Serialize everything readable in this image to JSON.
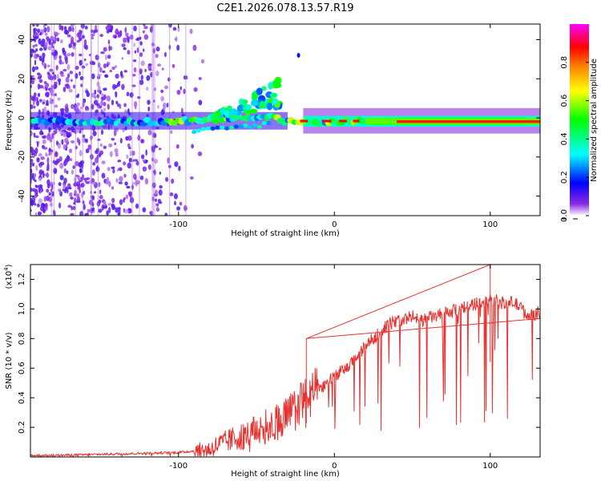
{
  "chart_data": [
    {
      "type": "heatmap",
      "title": "C2E1.2026.078.13.57.R19",
      "xlabel": "Height of straight line (km)",
      "ylabel": "Frequency (Hz)",
      "xlim": [
        -195,
        132
      ],
      "ylim": [
        -50,
        48
      ],
      "x_ticks": [
        -100,
        0,
        100
      ],
      "x_tick_labels": [
        "-100",
        "0",
        "100"
      ],
      "y_ticks": [
        -40,
        -20,
        0,
        20,
        40
      ],
      "y_tick_labels": [
        "-40",
        "-20",
        "0",
        "20",
        "40"
      ],
      "colorbar": {
        "label": "Normalized spectral amplitude",
        "range": [
          0,
          1
        ],
        "ticks": [
          0.0,
          0.2,
          0.4,
          0.6,
          0.8
        ],
        "tick_labels": [
          "0.0",
          "0.2",
          "0.4",
          "0.6",
          "0.8"
        ],
        "colormap": [
          "#ffffff",
          "#8a2be2",
          "#0000ff",
          "#00ffff",
          "#00ff00",
          "#ffff00",
          "#ff8000",
          "#ff0000",
          "#ff00ff"
        ]
      },
      "features": [
        {
          "name": "carrier-line",
          "x_range": [
            -195,
            132
          ],
          "frequency_hz": -2,
          "peak_amplitude": 0.95
        },
        {
          "name": "doppler-branch",
          "x_range": [
            -80,
            -35
          ],
          "frequency_hz_start": 0,
          "frequency_hz_end": 18
        },
        {
          "name": "scatter-noise",
          "x_range": [
            -195,
            -100
          ],
          "frequency_hz_range": [
            -50,
            48
          ]
        }
      ]
    },
    {
      "type": "line",
      "xlabel": "Height of straight line (km)",
      "ylabel": "SNR (10 * v/v)",
      "scale_label": "(x10",
      "scale_exponent": "4",
      "scale_suffix": ")",
      "xlim": [
        -195,
        132
      ],
      "ylim": [
        0,
        1.3
      ],
      "x_ticks": [
        -100,
        0,
        100
      ],
      "x_tick_labels": [
        "-100",
        "0",
        "100"
      ],
      "y_ticks": [
        0.2,
        0.4,
        0.6,
        0.8,
        1.0,
        1.2
      ],
      "y_tick_labels": [
        "0.2",
        "0.4",
        "0.6",
        "0.8",
        "1.0",
        "1.2"
      ],
      "color": "#e8312f",
      "series": [
        {
          "name": "SNR",
          "x": [
            -195,
            -180,
            -160,
            -140,
            -120,
            -100,
            -90,
            -80,
            -75,
            -70,
            -65,
            -60,
            -55,
            -50,
            -45,
            -40,
            -35,
            -30,
            -25,
            -20,
            -15,
            -10,
            -5,
            0,
            5,
            10,
            15,
            20,
            25,
            30,
            35,
            40,
            45,
            50,
            55,
            60,
            65,
            70,
            75,
            80,
            85,
            90,
            95,
            100,
            105,
            110,
            115,
            120,
            125,
            132
          ],
          "y": [
            0.01,
            0.01,
            0.015,
            0.02,
            0.025,
            0.03,
            0.04,
            0.05,
            0.08,
            0.1,
            0.12,
            0.14,
            0.15,
            0.18,
            0.2,
            0.22,
            0.25,
            0.28,
            0.32,
            0.38,
            0.42,
            0.45,
            0.5,
            0.55,
            0.58,
            0.62,
            0.68,
            0.75,
            0.8,
            0.85,
            0.9,
            0.92,
            0.93,
            0.95,
            0.92,
            0.94,
            0.95,
            0.97,
            0.98,
            1.0,
            1.02,
            1.03,
            1.05,
            1.07,
            1.05,
            1.03,
            1.05,
            1.0,
            0.95,
            0.98
          ]
        }
      ],
      "annotations": [
        {
          "x": -18,
          "y": 0.8,
          "kind": "spike"
        },
        {
          "x": 100,
          "y": 1.3,
          "kind": "spike"
        }
      ]
    }
  ]
}
